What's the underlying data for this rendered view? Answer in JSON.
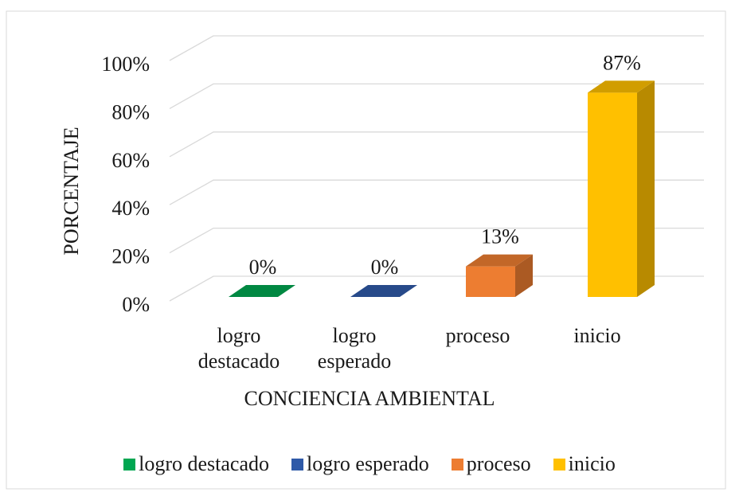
{
  "chart_data": {
    "type": "bar3d",
    "y_label": "PORCENTAJE",
    "x_label": "CONCIENCIA AMBIENTAL",
    "categories": [
      "logro destacado",
      "logro esperado",
      "proceso",
      "inicio"
    ],
    "values": [
      0,
      0,
      13,
      87
    ],
    "value_labels": [
      "0%",
      "0%",
      "13%",
      "87%"
    ],
    "colors": [
      "#00a651",
      "#2f5aa8",
      "#ed7d31",
      "#ffc000"
    ],
    "ylim": [
      0,
      100
    ],
    "yticks": [
      {
        "value": 0,
        "label": "0%"
      },
      {
        "value": 20,
        "label": "20%"
      },
      {
        "value": 40,
        "label": "40%"
      },
      {
        "value": 60,
        "label": "60%"
      },
      {
        "value": 80,
        "label": "80%"
      },
      {
        "value": 100,
        "label": "100%"
      }
    ],
    "grid": true,
    "legend": "bottom"
  }
}
